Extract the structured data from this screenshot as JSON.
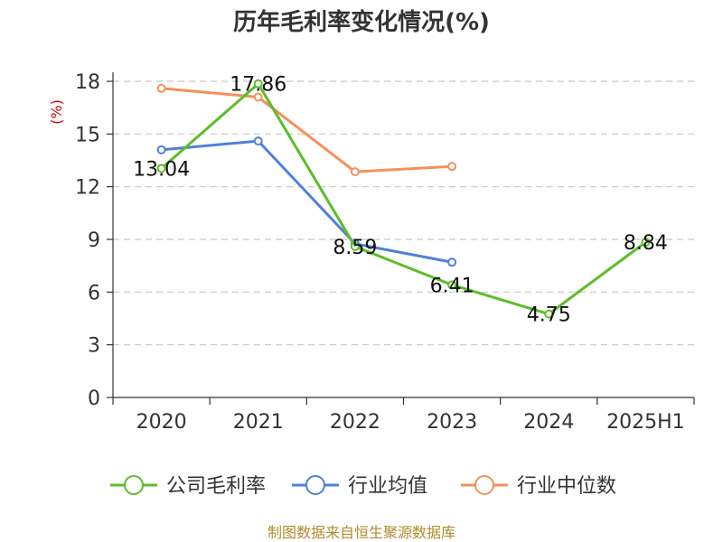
{
  "chart_data": {
    "type": "line",
    "title": "历年毛利率变化情况(%)",
    "ylabel": "(%)",
    "xlabel": "",
    "categories": [
      "2020",
      "2021",
      "2022",
      "2023",
      "2024",
      "2025H1"
    ],
    "ylim": [
      0,
      18
    ],
    "yticks": [
      0,
      3,
      6,
      9,
      12,
      15,
      18
    ],
    "grid": true,
    "legend_position": "bottom",
    "series": [
      {
        "name": "公司毛利率",
        "color": "#5bbd2b",
        "values": [
          13.04,
          17.86,
          8.59,
          6.41,
          4.75,
          8.84
        ],
        "labels": [
          "13.04",
          "17.86",
          "8.59",
          "6.41",
          "4.75",
          "8.84"
        ]
      },
      {
        "name": "行业均值",
        "color": "#4f81d8",
        "values": [
          14.1,
          14.6,
          8.75,
          7.7,
          null,
          null
        ]
      },
      {
        "name": "行业中位数",
        "color": "#f5905a",
        "values": [
          17.6,
          17.1,
          12.85,
          13.15,
          null,
          null
        ]
      }
    ]
  },
  "source": "制图数据来自恒生聚源数据库"
}
